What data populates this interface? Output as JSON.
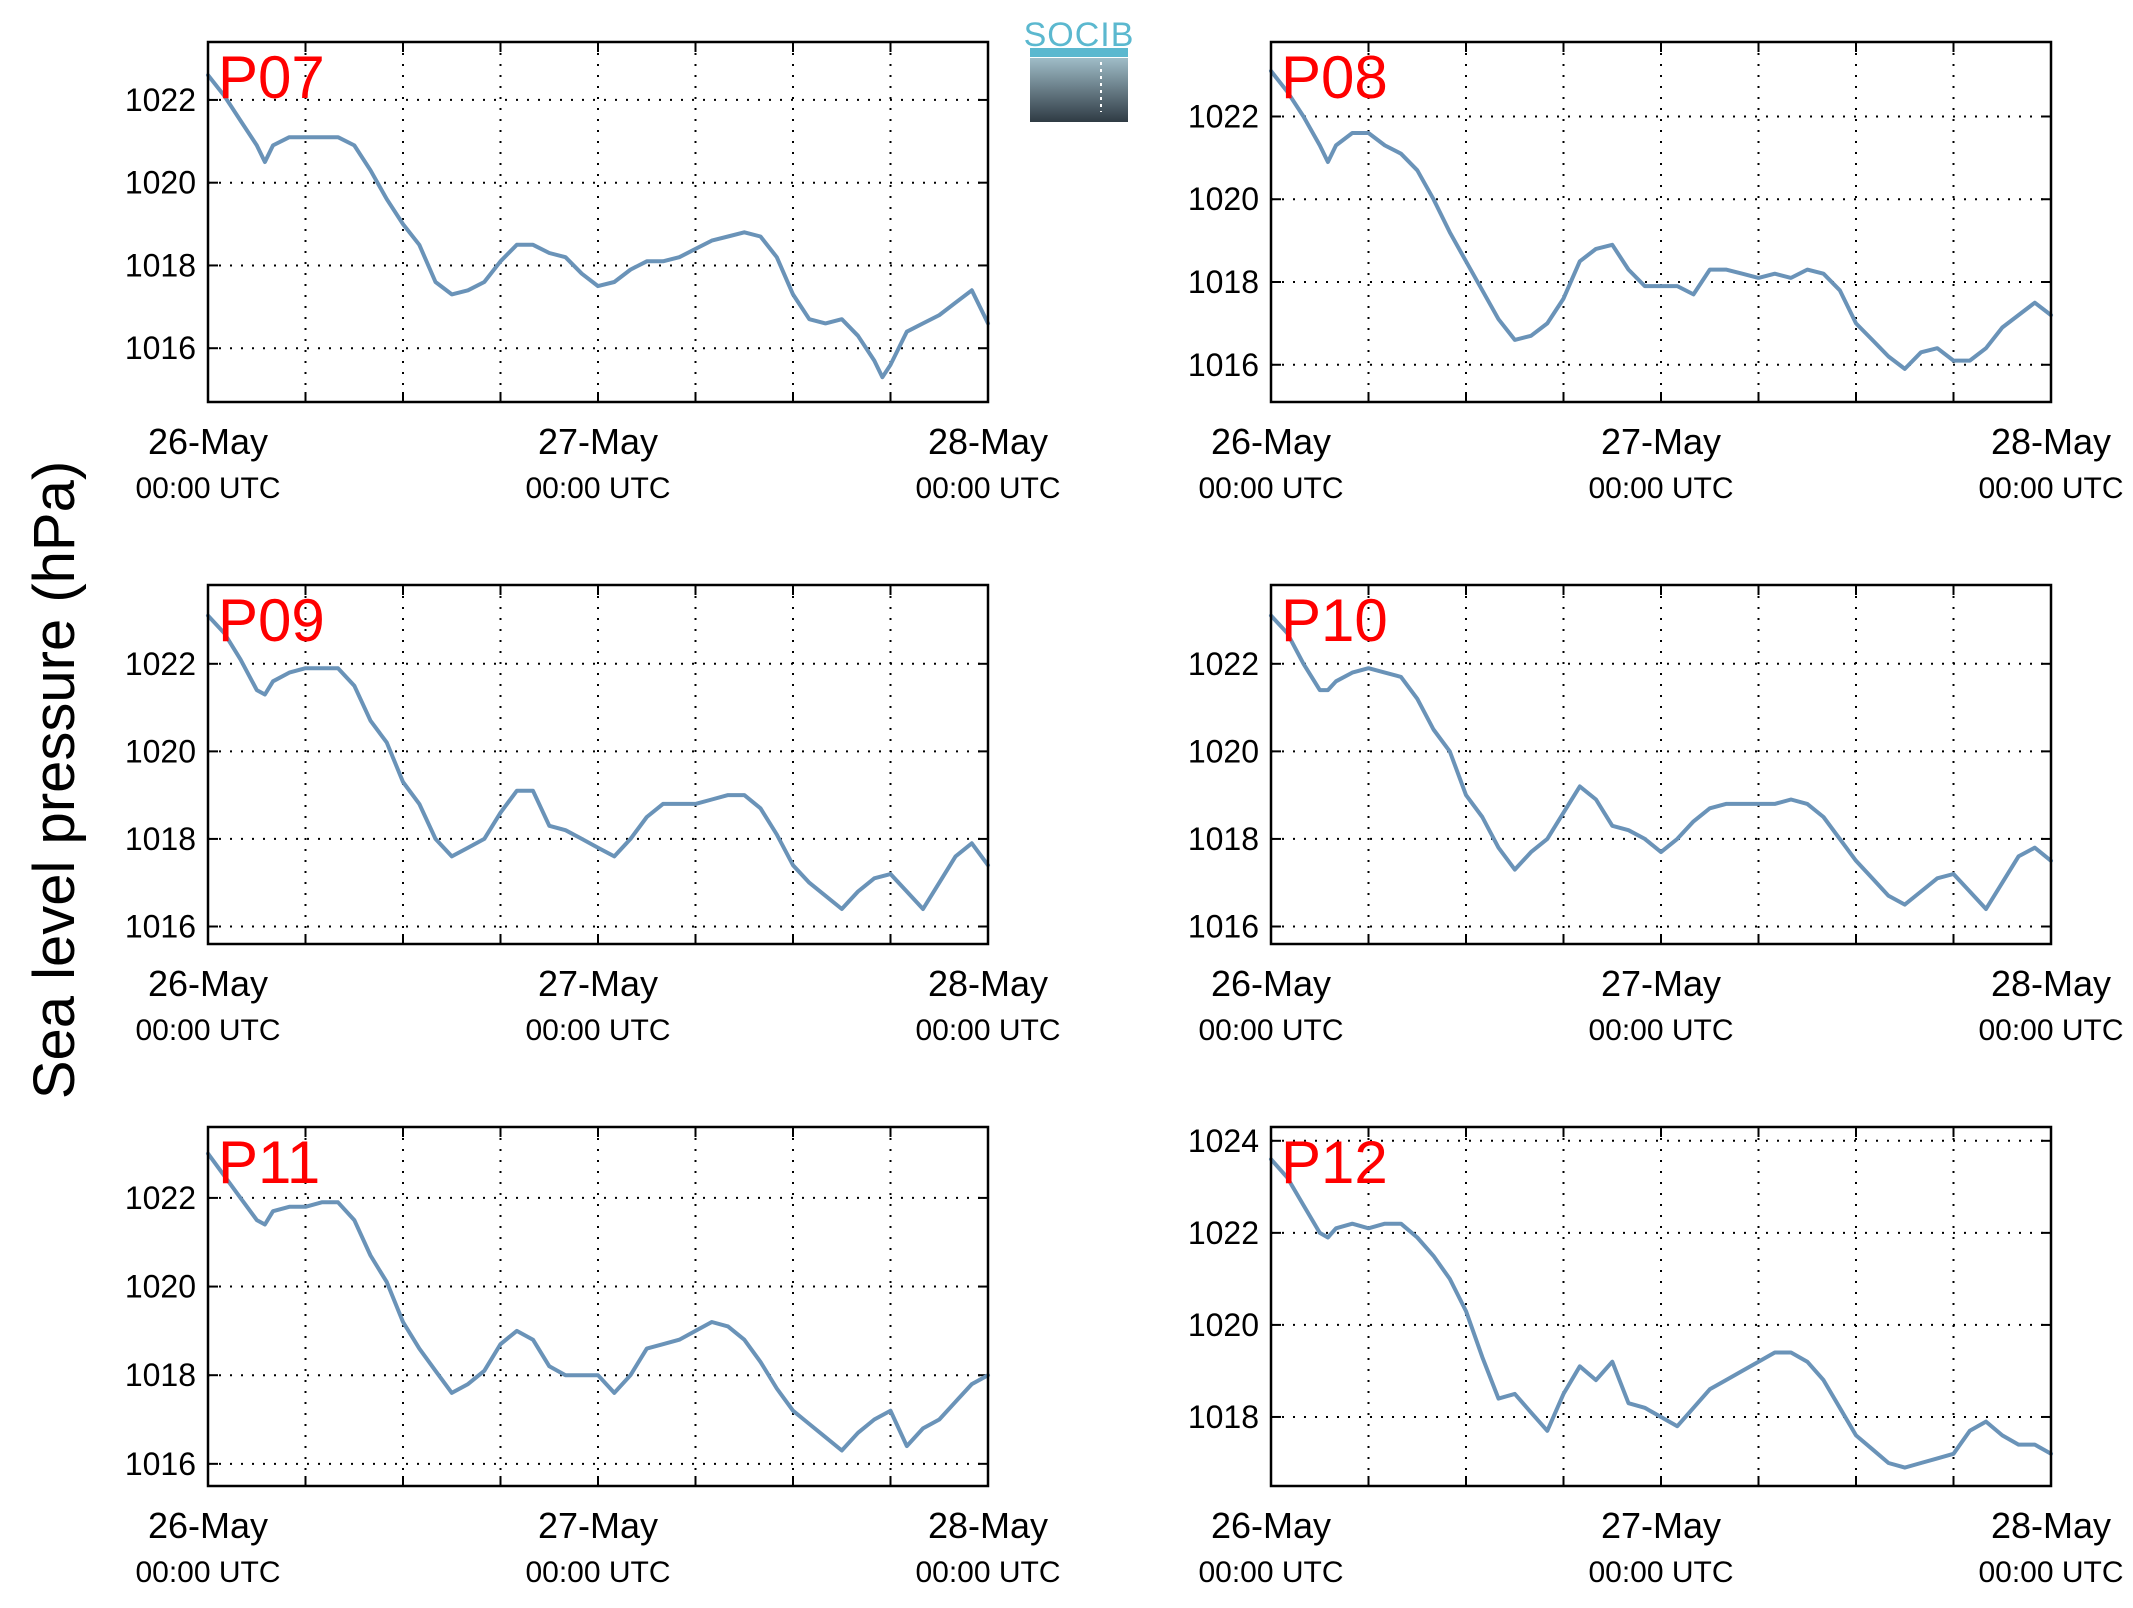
{
  "figure": {
    "ylabel": "Sea level pressure (hPa)",
    "logo_text": "SOCIB",
    "line_color": "#6a93b8",
    "title_color": "#ff0000"
  },
  "chart_data": [
    {
      "type": "line",
      "title": "P07",
      "x_tick_labels": [
        [
          "26-May",
          "00:00 UTC"
        ],
        [
          "27-May",
          "00:00 UTC"
        ],
        [
          "28-May",
          "00:00 UTC"
        ]
      ],
      "x_unit": "hours since 26-May 00:00 UTC",
      "xlim": [
        0,
        48
      ],
      "ylim": [
        1014.7,
        1023.4
      ],
      "yticks": [
        1016,
        1018,
        1020,
        1022
      ],
      "grid": true,
      "x": [
        0,
        1,
        2,
        3,
        3.5,
        4,
        5,
        6,
        7,
        8,
        9,
        10,
        11,
        12,
        13,
        14,
        15,
        16,
        17,
        18,
        19,
        20,
        21,
        22,
        23,
        24,
        25,
        26,
        27,
        28,
        29,
        30,
        31,
        32,
        33,
        34,
        35,
        36,
        37,
        38,
        39,
        40,
        41,
        41.5,
        42,
        43,
        44,
        45,
        46,
        47,
        48
      ],
      "y": [
        1022.6,
        1022.1,
        1021.5,
        1020.9,
        1020.5,
        1020.9,
        1021.1,
        1021.1,
        1021.1,
        1021.1,
        1020.9,
        1020.3,
        1019.6,
        1019.0,
        1018.5,
        1017.6,
        1017.3,
        1017.4,
        1017.6,
        1018.1,
        1018.5,
        1018.5,
        1018.3,
        1018.2,
        1017.8,
        1017.5,
        1017.6,
        1017.9,
        1018.1,
        1018.1,
        1018.2,
        1018.4,
        1018.6,
        1018.7,
        1018.8,
        1018.7,
        1018.2,
        1017.3,
        1016.7,
        1016.6,
        1016.7,
        1016.3,
        1015.7,
        1015.3,
        1015.6,
        1016.4,
        1016.6,
        1016.8,
        1017.1,
        1017.4,
        1016.6
      ]
    },
    {
      "type": "line",
      "title": "P08",
      "x_tick_labels": [
        [
          "26-May",
          "00:00 UTC"
        ],
        [
          "27-May",
          "00:00 UTC"
        ],
        [
          "28-May",
          "00:00 UTC"
        ]
      ],
      "x_unit": "hours since 26-May 00:00 UTC",
      "xlim": [
        0,
        48
      ],
      "ylim": [
        1015.1,
        1023.8
      ],
      "yticks": [
        1016,
        1018,
        1020,
        1022
      ],
      "grid": true,
      "x": [
        0,
        1,
        2,
        3,
        3.5,
        4,
        5,
        6,
        7,
        8,
        9,
        10,
        11,
        12,
        13,
        14,
        15,
        16,
        17,
        18,
        19,
        20,
        21,
        22,
        23,
        24,
        25,
        26,
        27,
        28,
        29,
        30,
        31,
        32,
        33,
        34,
        35,
        36,
        37,
        38,
        39,
        40,
        41,
        42,
        43,
        44,
        45,
        46,
        47,
        48
      ],
      "y": [
        1023.1,
        1022.6,
        1022.0,
        1021.3,
        1020.9,
        1021.3,
        1021.6,
        1021.6,
        1021.3,
        1021.1,
        1020.7,
        1020.0,
        1019.2,
        1018.5,
        1017.8,
        1017.1,
        1016.6,
        1016.7,
        1017.0,
        1017.6,
        1018.5,
        1018.8,
        1018.9,
        1018.3,
        1017.9,
        1017.9,
        1017.9,
        1017.7,
        1018.3,
        1018.3,
        1018.2,
        1018.1,
        1018.2,
        1018.1,
        1018.3,
        1018.2,
        1017.8,
        1017.0,
        1016.6,
        1016.2,
        1015.9,
        1016.3,
        1016.4,
        1016.1,
        1016.1,
        1016.4,
        1016.9,
        1017.2,
        1017.5,
        1017.2
      ]
    },
    {
      "type": "line",
      "title": "P09",
      "x_tick_labels": [
        [
          "26-May",
          "00:00 UTC"
        ],
        [
          "27-May",
          "00:00 UTC"
        ],
        [
          "28-May",
          "00:00 UTC"
        ]
      ],
      "x_unit": "hours since 26-May 00:00 UTC",
      "xlim": [
        0,
        48
      ],
      "ylim": [
        1015.6,
        1023.8
      ],
      "yticks": [
        1016,
        1018,
        1020,
        1022
      ],
      "grid": true,
      "x": [
        0,
        1,
        2,
        3,
        3.5,
        4,
        5,
        6,
        7,
        8,
        9,
        10,
        11,
        12,
        13,
        14,
        15,
        16,
        17,
        18,
        19,
        20,
        21,
        22,
        23,
        24,
        25,
        26,
        27,
        28,
        29,
        30,
        31,
        32,
        33,
        34,
        35,
        36,
        37,
        38,
        39,
        40,
        41,
        42,
        43,
        44,
        45,
        46,
        47,
        48
      ],
      "y": [
        1023.1,
        1022.7,
        1022.1,
        1021.4,
        1021.3,
        1021.6,
        1021.8,
        1021.9,
        1021.9,
        1021.9,
        1021.5,
        1020.7,
        1020.2,
        1019.3,
        1018.8,
        1018.0,
        1017.6,
        1017.8,
        1018.0,
        1018.6,
        1019.1,
        1019.1,
        1018.3,
        1018.2,
        1018.0,
        1017.8,
        1017.6,
        1018.0,
        1018.5,
        1018.8,
        1018.8,
        1018.8,
        1018.9,
        1019.0,
        1019.0,
        1018.7,
        1018.1,
        1017.4,
        1017.0,
        1016.7,
        1016.4,
        1016.8,
        1017.1,
        1017.2,
        1016.8,
        1016.4,
        1017.0,
        1017.6,
        1017.9,
        1017.4
      ]
    },
    {
      "type": "line",
      "title": "P10",
      "x_tick_labels": [
        [
          "26-May",
          "00:00 UTC"
        ],
        [
          "27-May",
          "00:00 UTC"
        ],
        [
          "28-May",
          "00:00 UTC"
        ]
      ],
      "x_unit": "hours since 26-May 00:00 UTC",
      "xlim": [
        0,
        48
      ],
      "ylim": [
        1015.6,
        1023.8
      ],
      "yticks": [
        1016,
        1018,
        1020,
        1022
      ],
      "grid": true,
      "x": [
        0,
        1,
        2,
        3,
        3.5,
        4,
        5,
        6,
        7,
        8,
        9,
        10,
        11,
        12,
        13,
        14,
        15,
        16,
        17,
        18,
        19,
        20,
        21,
        22,
        23,
        24,
        25,
        26,
        27,
        28,
        29,
        30,
        31,
        32,
        33,
        34,
        35,
        36,
        37,
        38,
        39,
        40,
        41,
        42,
        43,
        44,
        45,
        46,
        47,
        48
      ],
      "y": [
        1023.1,
        1022.7,
        1022.0,
        1021.4,
        1021.4,
        1021.6,
        1021.8,
        1021.9,
        1021.8,
        1021.7,
        1021.2,
        1020.5,
        1020.0,
        1019.0,
        1018.5,
        1017.8,
        1017.3,
        1017.7,
        1018.0,
        1018.6,
        1019.2,
        1018.9,
        1018.3,
        1018.2,
        1018.0,
        1017.7,
        1018.0,
        1018.4,
        1018.7,
        1018.8,
        1018.8,
        1018.8,
        1018.8,
        1018.9,
        1018.8,
        1018.5,
        1018.0,
        1017.5,
        1017.1,
        1016.7,
        1016.5,
        1016.8,
        1017.1,
        1017.2,
        1016.8,
        1016.4,
        1017.0,
        1017.6,
        1017.8,
        1017.5
      ]
    },
    {
      "type": "line",
      "title": "P11",
      "x_tick_labels": [
        [
          "26-May",
          "00:00 UTC"
        ],
        [
          "27-May",
          "00:00 UTC"
        ],
        [
          "28-May",
          "00:00 UTC"
        ]
      ],
      "x_unit": "hours since 26-May 00:00 UTC",
      "xlim": [
        0,
        48
      ],
      "ylim": [
        1015.5,
        1023.6
      ],
      "yticks": [
        1016,
        1018,
        1020,
        1022
      ],
      "grid": true,
      "x": [
        0,
        1,
        2,
        3,
        3.5,
        4,
        5,
        6,
        7,
        8,
        9,
        10,
        11,
        12,
        13,
        14,
        15,
        16,
        17,
        18,
        19,
        20,
        21,
        22,
        23,
        24,
        25,
        26,
        27,
        28,
        29,
        30,
        31,
        32,
        33,
        34,
        35,
        36,
        37,
        38,
        39,
        40,
        41,
        42,
        43,
        44,
        45,
        46,
        47,
        48
      ],
      "y": [
        1023.0,
        1022.5,
        1022.0,
        1021.5,
        1021.4,
        1021.7,
        1021.8,
        1021.8,
        1021.9,
        1021.9,
        1021.5,
        1020.7,
        1020.1,
        1019.2,
        1018.6,
        1018.1,
        1017.6,
        1017.8,
        1018.1,
        1018.7,
        1019.0,
        1018.8,
        1018.2,
        1018.0,
        1018.0,
        1018.0,
        1017.6,
        1018.0,
        1018.6,
        1018.7,
        1018.8,
        1019.0,
        1019.2,
        1019.1,
        1018.8,
        1018.3,
        1017.7,
        1017.2,
        1016.9,
        1016.6,
        1016.3,
        1016.7,
        1017.0,
        1017.2,
        1016.4,
        1016.8,
        1017.0,
        1017.4,
        1017.8,
        1018.0
      ]
    },
    {
      "type": "line",
      "title": "P12",
      "x_tick_labels": [
        [
          "26-May",
          "00:00 UTC"
        ],
        [
          "27-May",
          "00:00 UTC"
        ],
        [
          "28-May",
          "00:00 UTC"
        ]
      ],
      "x_unit": "hours since 26-May 00:00 UTC",
      "xlim": [
        0,
        48
      ],
      "ylim": [
        1016.5,
        1024.3
      ],
      "yticks": [
        1018,
        1020,
        1022,
        1024
      ],
      "grid": true,
      "x": [
        0,
        1,
        2,
        3,
        3.5,
        4,
        5,
        6,
        7,
        8,
        9,
        10,
        11,
        12,
        13,
        14,
        15,
        16,
        17,
        18,
        19,
        20,
        21,
        22,
        23,
        24,
        25,
        26,
        27,
        28,
        29,
        30,
        31,
        32,
        33,
        34,
        35,
        36,
        37,
        38,
        39,
        40,
        41,
        42,
        43,
        44,
        45,
        46,
        47,
        48
      ],
      "y": [
        1023.6,
        1023.2,
        1022.6,
        1022.0,
        1021.9,
        1022.1,
        1022.2,
        1022.1,
        1022.2,
        1022.2,
        1021.9,
        1021.5,
        1021.0,
        1020.3,
        1019.3,
        1018.4,
        1018.5,
        1018.1,
        1017.7,
        1018.5,
        1019.1,
        1018.8,
        1019.2,
        1018.3,
        1018.2,
        1018.0,
        1017.8,
        1018.2,
        1018.6,
        1018.8,
        1019.0,
        1019.2,
        1019.4,
        1019.4,
        1019.2,
        1018.8,
        1018.2,
        1017.6,
        1017.3,
        1017.0,
        1016.9,
        1017.0,
        1017.1,
        1017.2,
        1017.7,
        1017.9,
        1017.6,
        1017.4,
        1017.4,
        1017.2
      ]
    }
  ]
}
